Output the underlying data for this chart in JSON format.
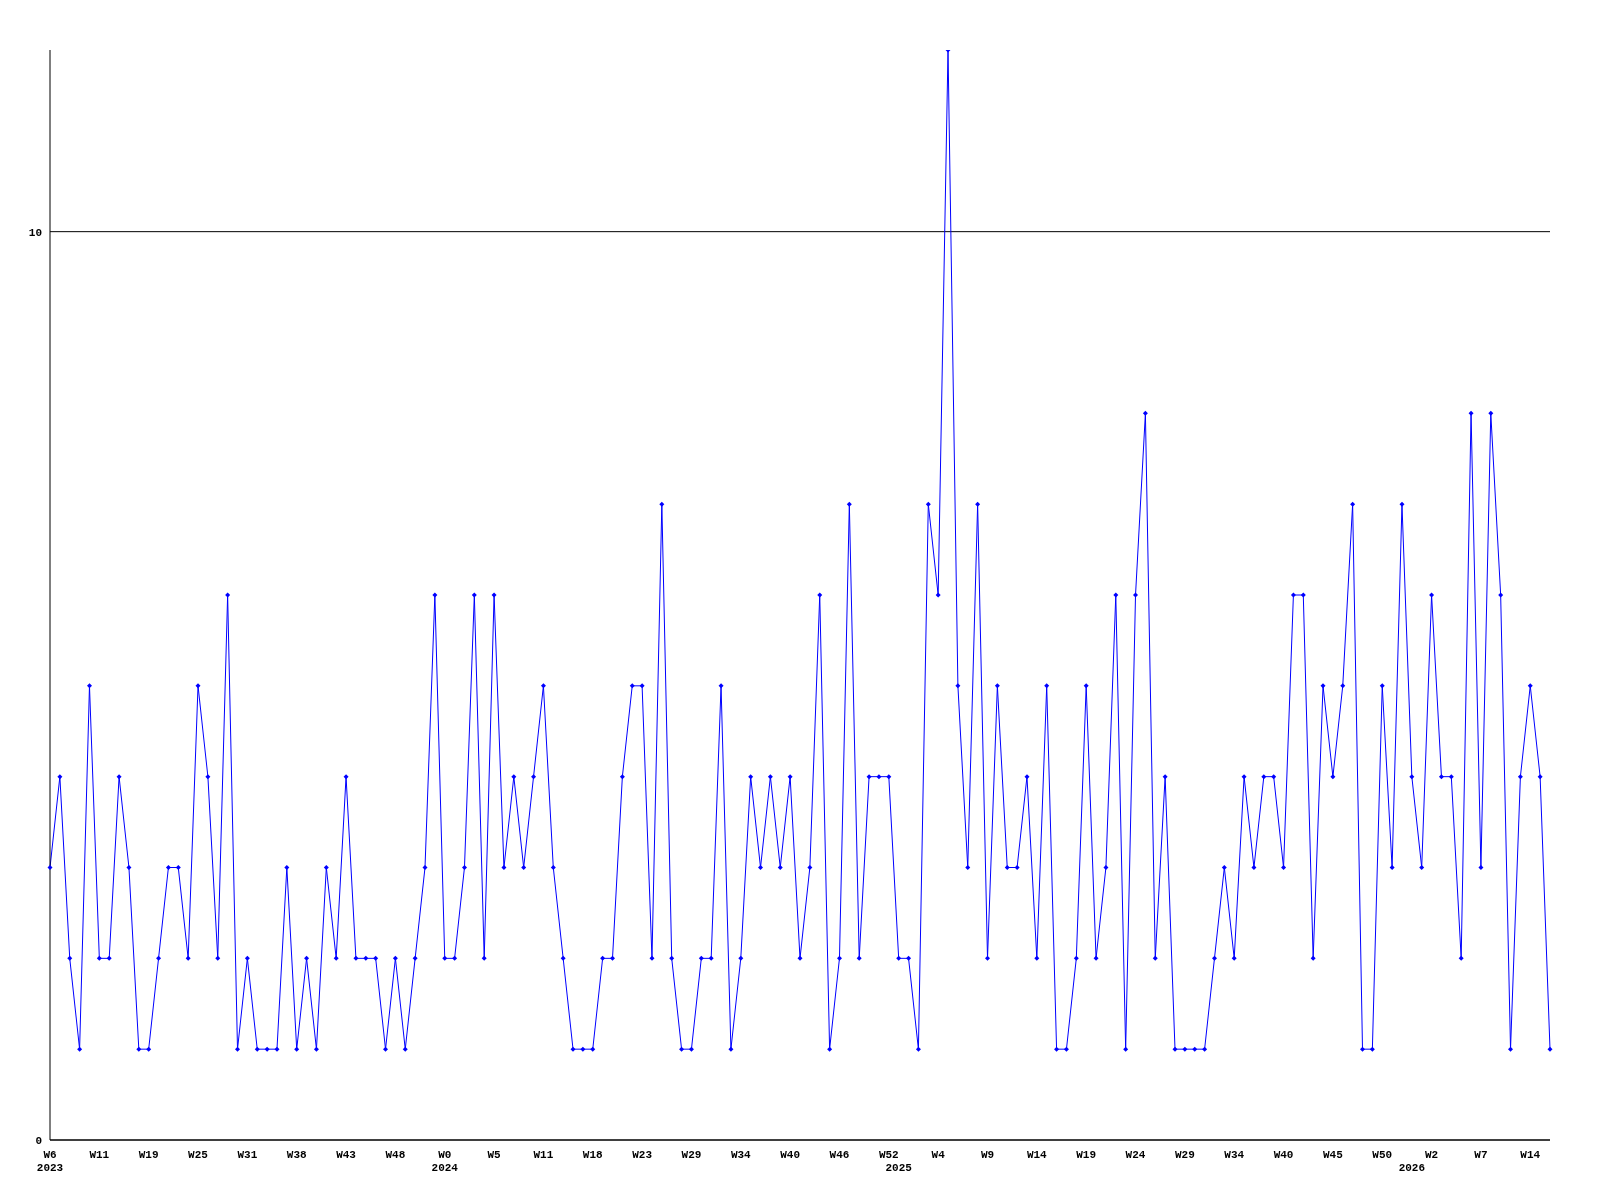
{
  "chart_data": {
    "type": "line",
    "categories": [
      "W6\n2023",
      null,
      null,
      null,
      null,
      "W11",
      null,
      null,
      null,
      null,
      "W19",
      null,
      null,
      null,
      null,
      "W25",
      null,
      null,
      null,
      null,
      "W31",
      null,
      null,
      null,
      null,
      "W38",
      null,
      null,
      null,
      null,
      "W43",
      null,
      null,
      null,
      null,
      "W48",
      null,
      null,
      null,
      null,
      "W0\n2024",
      null,
      null,
      null,
      null,
      "W5",
      null,
      null,
      null,
      null,
      "W11",
      null,
      null,
      null,
      null,
      "W18",
      null,
      null,
      null,
      null,
      "W23",
      null,
      null,
      null,
      null,
      "W29",
      null,
      null,
      null,
      null,
      "W34",
      null,
      null,
      null,
      null,
      "W40",
      null,
      null,
      null,
      null,
      "W46",
      null,
      null,
      null,
      null,
      "W52",
      "\n2025",
      null,
      null,
      null,
      "W4",
      null,
      null,
      null,
      null,
      "W9",
      null,
      null,
      null,
      null,
      "W14",
      null,
      null,
      null,
      null,
      "W19",
      null,
      null,
      null,
      null,
      "W24",
      null,
      null,
      null,
      null,
      "W29",
      null,
      null,
      null,
      null,
      "W34",
      null,
      null,
      null,
      null,
      "W40",
      null,
      null,
      null,
      null,
      "W45",
      null,
      null,
      null,
      null,
      "W50",
      null,
      null,
      "\n2026",
      null,
      "W2",
      null,
      null,
      null,
      null,
      "W7",
      null,
      null,
      null,
      null,
      "W14",
      null,
      null
    ],
    "series": [
      {
        "color": "#0000ff",
        "values": [
          3,
          4,
          2,
          1,
          5,
          2,
          2,
          4,
          3,
          1,
          1,
          2,
          3,
          3,
          2,
          5,
          4,
          2,
          6,
          1,
          2,
          1,
          1,
          1,
          3,
          1,
          2,
          1,
          3,
          2,
          4,
          2,
          2,
          2,
          1,
          2,
          1,
          2,
          3,
          6,
          2,
          2,
          3,
          6,
          2,
          6,
          3,
          4,
          3,
          4,
          5,
          3,
          2,
          1,
          1,
          1,
          2,
          2,
          4,
          5,
          5,
          2,
          7,
          2,
          1,
          1,
          2,
          2,
          5,
          1,
          2,
          4,
          3,
          4,
          3,
          4,
          2,
          3,
          6,
          1,
          2,
          7,
          2,
          4,
          4,
          4,
          2,
          2,
          1,
          7,
          6,
          12,
          5,
          3,
          7,
          2,
          5,
          3,
          3,
          4,
          2,
          5,
          1,
          1,
          2,
          5,
          2,
          3,
          6,
          1,
          6,
          8,
          2,
          4,
          1,
          1,
          1,
          1,
          2,
          3,
          2,
          4,
          3,
          4,
          4,
          3,
          6,
          6,
          2,
          5,
          4,
          5,
          7,
          1,
          1,
          5,
          3,
          7,
          4,
          3,
          6,
          4,
          4,
          2,
          8,
          3,
          8,
          6,
          1,
          4,
          5,
          4,
          1
        ]
      }
    ],
    "ylim": [
      0,
      12
    ],
    "yticks": [
      0,
      10
    ],
    "grid": "y",
    "marker": "diamond",
    "line_style": "solid"
  }
}
